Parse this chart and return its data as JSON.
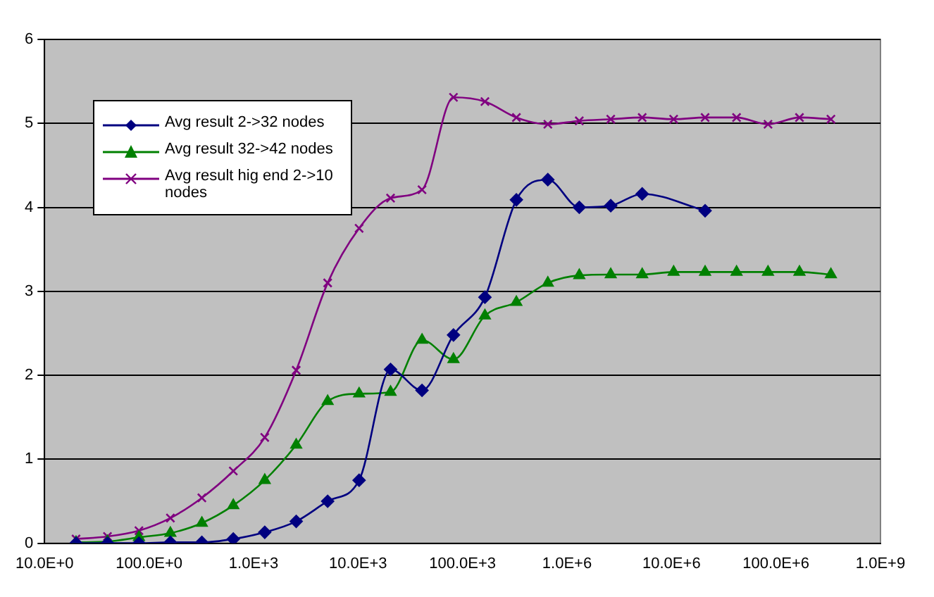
{
  "chart_data": {
    "type": "line",
    "x": [
      20,
      40,
      80,
      160,
      320,
      640,
      1280,
      2560,
      5120,
      10240,
      20480,
      40960,
      81920,
      163840,
      327680,
      655360,
      1310720,
      2621440,
      5242880,
      10485760,
      20971520,
      41943040,
      83886080,
      167772160,
      335544320
    ],
    "series": [
      {
        "name": "Avg result 2->32 nodes",
        "color": "#000080",
        "marker": "diamond",
        "values": [
          0,
          0,
          0,
          0.01,
          0.01,
          0.05,
          0.13,
          0.26,
          0.5,
          0.75,
          2.07,
          1.82,
          2.48,
          2.93,
          4.09,
          4.33,
          4.0,
          4.02,
          4.16,
          null,
          3.96,
          null,
          null,
          null,
          null
        ]
      },
      {
        "name": "Avg result 32->42 nodes",
        "color": "#008000",
        "marker": "triangle",
        "values": [
          0.01,
          0.02,
          0.07,
          0.12,
          0.24,
          0.45,
          0.75,
          1.17,
          1.69,
          1.78,
          1.8,
          2.42,
          2.19,
          2.71,
          2.87,
          3.1,
          3.19,
          3.2,
          3.2,
          3.23,
          3.23,
          3.23,
          3.23,
          3.23,
          3.2
        ]
      },
      {
        "name": "Avg result hig end 2->10 nodes",
        "color": "#800080",
        "marker": "cross",
        "values": [
          0.05,
          0.08,
          0.15,
          0.3,
          0.54,
          0.86,
          1.26,
          2.06,
          3.1,
          3.75,
          4.11,
          4.21,
          5.31,
          5.26,
          5.07,
          4.99,
          5.03,
          5.05,
          5.07,
          5.05,
          5.07,
          5.07,
          4.99,
          5.07,
          5.05
        ]
      }
    ],
    "log": "x",
    "xlim": [
      10,
      1000000000
    ],
    "xticks": [
      {
        "value": 10,
        "label": "10.0E+0"
      },
      {
        "value": 100,
        "label": "100.0E+0"
      },
      {
        "value": 1000,
        "label": "1.0E+3"
      },
      {
        "value": 10000,
        "label": "10.0E+3"
      },
      {
        "value": 100000,
        "label": "100.0E+3"
      },
      {
        "value": 1000000,
        "label": "1.0E+6"
      },
      {
        "value": 10000000,
        "label": "10.0E+6"
      },
      {
        "value": 100000000,
        "label": "100.0E+6"
      },
      {
        "value": 1000000000,
        "label": "1.0E+9"
      }
    ],
    "ylim": [
      0,
      6
    ],
    "yticks": [
      0,
      1,
      2,
      3,
      4,
      5,
      6
    ],
    "grid": "y",
    "legend": "top left",
    "line_style": "solid"
  }
}
